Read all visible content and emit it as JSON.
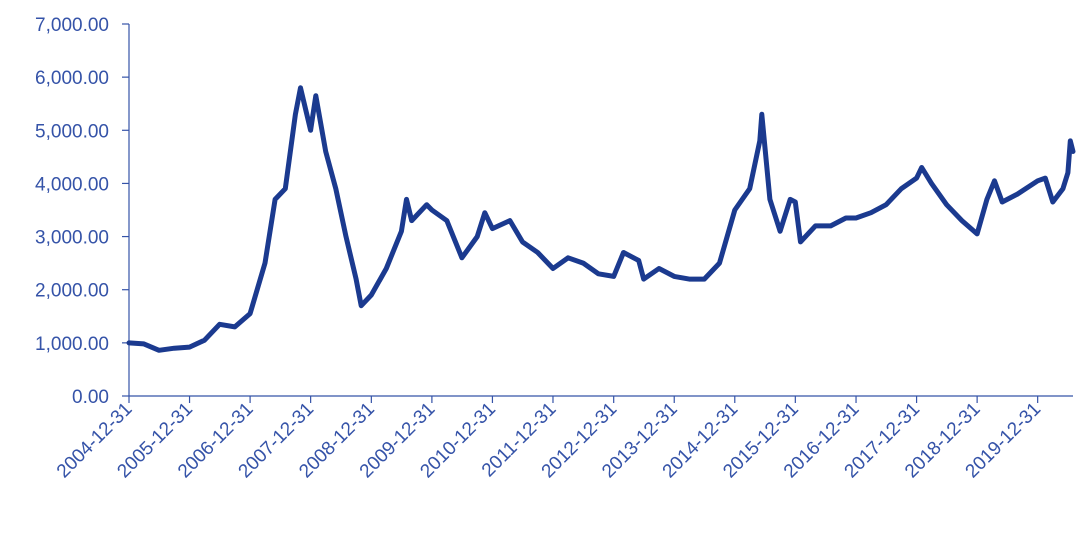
{
  "chart_data": {
    "type": "line",
    "title": "",
    "xlabel": "",
    "ylabel": "",
    "ylim": [
      0,
      7000
    ],
    "x_range": [
      "2004-12-31",
      "2020-07-31"
    ],
    "grid": false,
    "legend": "none",
    "color": "#1b3a8f",
    "text_color": "#3553a8",
    "y_ticks": [
      "0.00",
      "1,000.00",
      "2,000.00",
      "3,000.00",
      "4,000.00",
      "5,000.00",
      "6,000.00",
      "7,000.00"
    ],
    "x_ticks": [
      "2004-12-31",
      "2005-12-31",
      "2006-12-31",
      "2007-12-31",
      "2008-12-31",
      "2009-12-31",
      "2010-12-31",
      "2011-12-31",
      "2012-12-31",
      "2013-12-31",
      "2014-12-31",
      "2015-12-31",
      "2016-12-31",
      "2017-12-31",
      "2018-12-31",
      "2019-12-31"
    ],
    "series": [
      {
        "points": [
          [
            "2004-12-31",
            1000
          ],
          [
            "2005-03-31",
            980
          ],
          [
            "2005-06-30",
            860
          ],
          [
            "2005-09-30",
            900
          ],
          [
            "2005-12-31",
            920
          ],
          [
            "2006-03-31",
            1050
          ],
          [
            "2006-06-30",
            1350
          ],
          [
            "2006-09-30",
            1300
          ],
          [
            "2006-12-31",
            1550
          ],
          [
            "2007-03-31",
            2500
          ],
          [
            "2007-05-31",
            3700
          ],
          [
            "2007-07-31",
            3900
          ],
          [
            "2007-09-30",
            5300
          ],
          [
            "2007-10-31",
            5800
          ],
          [
            "2007-12-31",
            5000
          ],
          [
            "2008-01-31",
            5650
          ],
          [
            "2008-03-31",
            4600
          ],
          [
            "2008-05-31",
            3900
          ],
          [
            "2008-07-31",
            3000
          ],
          [
            "2008-09-30",
            2200
          ],
          [
            "2008-10-31",
            1700
          ],
          [
            "2008-12-31",
            1900
          ],
          [
            "2009-03-31",
            2400
          ],
          [
            "2009-06-30",
            3100
          ],
          [
            "2009-07-31",
            3700
          ],
          [
            "2009-08-31",
            3300
          ],
          [
            "2009-11-30",
            3600
          ],
          [
            "2009-12-31",
            3500
          ],
          [
            "2010-03-31",
            3300
          ],
          [
            "2010-06-30",
            2600
          ],
          [
            "2010-09-30",
            3000
          ],
          [
            "2010-11-15",
            3450
          ],
          [
            "2010-12-31",
            3150
          ],
          [
            "2011-04-15",
            3300
          ],
          [
            "2011-06-30",
            2900
          ],
          [
            "2011-09-30",
            2700
          ],
          [
            "2011-12-31",
            2400
          ],
          [
            "2012-03-31",
            2600
          ],
          [
            "2012-06-30",
            2500
          ],
          [
            "2012-09-30",
            2300
          ],
          [
            "2012-12-31",
            2250
          ],
          [
            "2013-02-28",
            2700
          ],
          [
            "2013-05-31",
            2550
          ],
          [
            "2013-06-30",
            2200
          ],
          [
            "2013-09-30",
            2400
          ],
          [
            "2013-12-31",
            2250
          ],
          [
            "2014-03-31",
            2200
          ],
          [
            "2014-06-30",
            2200
          ],
          [
            "2014-09-30",
            2500
          ],
          [
            "2014-12-31",
            3500
          ],
          [
            "2015-03-31",
            3900
          ],
          [
            "2015-05-31",
            4800
          ],
          [
            "2015-06-12",
            5300
          ],
          [
            "2015-07-31",
            3700
          ],
          [
            "2015-09-30",
            3100
          ],
          [
            "2015-11-30",
            3700
          ],
          [
            "2015-12-31",
            3650
          ],
          [
            "2016-01-31",
            2900
          ],
          [
            "2016-04-30",
            3200
          ],
          [
            "2016-07-31",
            3200
          ],
          [
            "2016-10-31",
            3350
          ],
          [
            "2016-12-31",
            3350
          ],
          [
            "2017-03-31",
            3450
          ],
          [
            "2017-06-30",
            3600
          ],
          [
            "2017-09-30",
            3900
          ],
          [
            "2017-12-31",
            4100
          ],
          [
            "2018-01-31",
            4300
          ],
          [
            "2018-03-31",
            4000
          ],
          [
            "2018-06-30",
            3600
          ],
          [
            "2018-09-30",
            3300
          ],
          [
            "2018-12-31",
            3050
          ],
          [
            "2019-02-28",
            3700
          ],
          [
            "2019-04-15",
            4050
          ],
          [
            "2019-05-31",
            3650
          ],
          [
            "2019-08-31",
            3800
          ],
          [
            "2019-12-31",
            4050
          ],
          [
            "2020-02-15",
            4100
          ],
          [
            "2020-03-31",
            3650
          ],
          [
            "2020-05-31",
            3900
          ],
          [
            "2020-06-30",
            4200
          ],
          [
            "2020-07-15",
            4800
          ],
          [
            "2020-07-31",
            4600
          ]
        ]
      }
    ]
  }
}
